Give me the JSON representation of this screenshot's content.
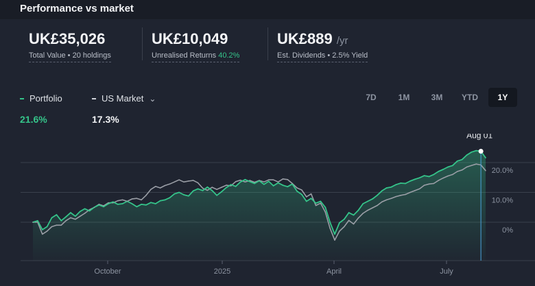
{
  "title": "Performance vs market",
  "stats": [
    {
      "value": "UK£35,026",
      "suffix": "",
      "label": "Total Value • 20 holdings",
      "highlight": ""
    },
    {
      "value": "UK£10,049",
      "suffix": "",
      "label": "Unrealised Returns",
      "highlight": "40.2%"
    },
    {
      "value": "UK£889",
      "suffix": "/yr",
      "label": "Est. Dividends • 2.5% Yield",
      "highlight": ""
    }
  ],
  "legend": {
    "portfolio_label": "Portfolio",
    "market_label": "US Market",
    "portfolio_pct": "21.6%",
    "market_pct": "17.3%"
  },
  "periods": [
    "7D",
    "1M",
    "3M",
    "YTD",
    "1Y"
  ],
  "active_period": "1Y",
  "colors": {
    "portfolio": "#35c48a",
    "market": "#9a9ea6",
    "cursor": "#4aa3df",
    "highlight": "#35c48a"
  },
  "icons": {
    "market_dropdown": "chevron-down-icon"
  },
  "chart_data": {
    "type": "line",
    "x_tick_labels": [
      "October",
      "2025",
      "April",
      "July"
    ],
    "y_tick_labels": [
      "0%",
      "10.0%",
      "20.0%"
    ],
    "ylim": [
      -10,
      25
    ],
    "grid": true,
    "cursor_label": "Aug 01",
    "series": [
      {
        "name": "Portfolio",
        "values": [
          0,
          0.5,
          -2.5,
          -1.5,
          1.5,
          2.5,
          0.5,
          1.8,
          3.2,
          2.0,
          3.6,
          4.5,
          3.8,
          5.0,
          5.8,
          5.2,
          6.2,
          6.8,
          6.0,
          6.2,
          7.0,
          6.2,
          5.2,
          6.0,
          5.8,
          6.6,
          6.2,
          7.2,
          7.5,
          8.2,
          9.5,
          10.0,
          9.2,
          8.8,
          10.5,
          11.2,
          10.6,
          11.8,
          10.6,
          9.0,
          10.2,
          11.6,
          12.6,
          12.0,
          13.5,
          14.3,
          13.6,
          13.0,
          13.9,
          12.7,
          13.7,
          12.2,
          13.2,
          12.4,
          11.9,
          12.8,
          10.4,
          9.3,
          7.0,
          8.0,
          6.4,
          7.0,
          5.0,
          0.0,
          -4.0,
          -0.2,
          1.0,
          3.2,
          2.4,
          4.0,
          6.2,
          7.0,
          7.8,
          9.0,
          10.5,
          11.5,
          11.8,
          12.6,
          13.1,
          13.0,
          13.8,
          14.4,
          14.9,
          15.6,
          15.3,
          16.0,
          17.0,
          17.7,
          18.5,
          19.0,
          20.5,
          21.0,
          22.5,
          23.5,
          24.0,
          23.8,
          21.6
        ]
      },
      {
        "name": "US Market",
        "values": [
          0,
          0,
          -4.0,
          -3.0,
          -1.5,
          -1.0,
          -1.0,
          0.5,
          1.5,
          1.0,
          2.0,
          3.0,
          4.2,
          5.0,
          6.0,
          5.5,
          6.5,
          6.5,
          7.2,
          7.5,
          7.0,
          7.8,
          8.0,
          7.5,
          9.0,
          11.0,
          12.0,
          11.5,
          12.3,
          12.8,
          13.5,
          14.2,
          13.5,
          13.8,
          14.0,
          13.2,
          11.4,
          10.7,
          11.7,
          11.0,
          11.7,
          12.4,
          12.2,
          13.6,
          14.1,
          13.5,
          14.0,
          13.4,
          14.0,
          13.5,
          14.2,
          14.2,
          13.5,
          14.5,
          14.3,
          13.0,
          11.5,
          10.8,
          8.5,
          9.5,
          5.6,
          6.4,
          3.4,
          -2.0,
          -6.0,
          -3.0,
          -1.5,
          0.6,
          -0.6,
          1.4,
          3.0,
          4.0,
          4.8,
          5.6,
          6.8,
          7.5,
          8.0,
          8.6,
          9.0,
          9.3,
          10.0,
          10.6,
          11.2,
          12.4,
          12.8,
          13.0,
          14.0,
          14.8,
          15.5,
          16.0,
          17.0,
          17.5,
          18.5,
          19.0,
          19.5,
          19.2,
          17.3
        ]
      }
    ]
  }
}
